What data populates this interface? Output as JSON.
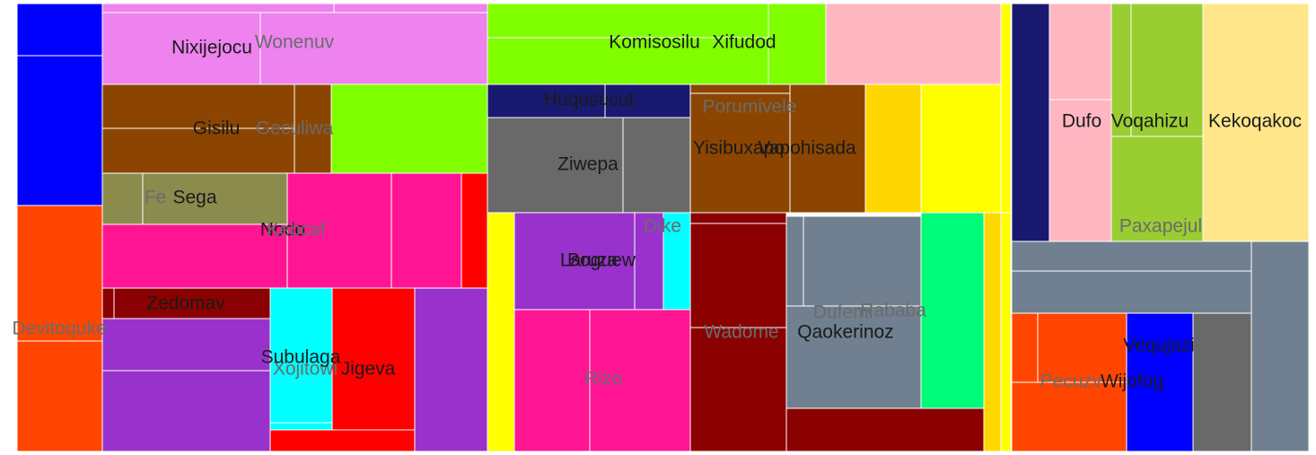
{
  "chart_data": {
    "type": "treemap",
    "colors": {
      "blue": "#0000ff",
      "orangered": "#ff4500",
      "violet": "#ee82ee",
      "saddlebrown": "#8b4500",
      "chartreuse": "#7fff00",
      "olive": "#8b8b4e",
      "deeppink": "#ff1493",
      "red": "#ff0000",
      "darkred": "#8b0000",
      "darkorchid": "#9932cc",
      "cyan": "#00ffff",
      "pink": "#ffb6c1",
      "navy": "#191970",
      "dimgray": "#696969",
      "gold": "#ffd700",
      "yellow": "#ffff00",
      "slategray": "#708090",
      "springgreen": "#00fa7a",
      "yellowgreen": "#9acd32",
      "lightyellow": "#ffe68a"
    },
    "cells": [
      {
        "color": "blue",
        "value": 0.12
      },
      {
        "color": "blue",
        "value": 4.64
      },
      {
        "color": "orangered",
        "value": 3.45
      },
      {
        "color": "orangered",
        "value": 3.71,
        "label": "Devitoquke",
        "label_color": "dim"
      },
      {
        "color": "violet",
        "value": 0.18
      },
      {
        "color": "violet",
        "value": 0.24
      },
      {
        "color": "violet",
        "value": 5.0,
        "label": "Nixijejocu",
        "label_color": "dark"
      },
      {
        "color": "violet",
        "value": 6.6,
        "label": "Wonenuv",
        "label_color": "dim"
      },
      {
        "color": "saddlebrown",
        "value": 2.64
      },
      {
        "color": "saddlebrown",
        "value": 2.6,
        "label": "Gisilu",
        "label_color": "dark"
      },
      {
        "color": "saddlebrown",
        "value": 1.0,
        "label": "Geculiwa",
        "label_color": "dim"
      },
      {
        "color": "chartreuse",
        "value": 3.5
      },
      {
        "color": "olive",
        "value": 0.73,
        "label": "Fe",
        "label_color": "dim"
      },
      {
        "color": "olive",
        "value": 2.5,
        "label": "Sega",
        "label_color": "dark"
      },
      {
        "color": "deeppink",
        "value": 3.15,
        "label": "Nodo",
        "label_color": "dark"
      },
      {
        "color": "deeppink",
        "value": 3.0,
        "label": "Kebcaf",
        "label_color": "dim"
      },
      {
        "color": "deeppink",
        "value": 1.94
      },
      {
        "color": "red",
        "value": 0.74
      },
      {
        "color": "darkred",
        "value": 0.23
      },
      {
        "color": "darkred",
        "value": 2.0,
        "label": "Zedomav",
        "label_color": "dark"
      },
      {
        "color": "darkorchid",
        "value": 2.57
      },
      {
        "color": "darkorchid",
        "value": 4.33
      },
      {
        "color": "cyan",
        "value": 2.8,
        "label": "Xojitowi",
        "label_color": "dim"
      },
      {
        "color": "cyan",
        "value": 0.21
      },
      {
        "color": "red",
        "value": 2.65,
        "label": "Jigeva",
        "label_color": "dark"
      },
      {
        "color": "red",
        "value": 1.0
      },
      {
        "color": "darkorchid",
        "value": 3.95
      },
      {
        "color": "chartreuse",
        "value": 1.48
      },
      {
        "color": "chartreuse",
        "value": 3.0,
        "label": "Komisosilu",
        "label_color": "dark"
      },
      {
        "color": "chartreuse",
        "value": 2.77,
        "label": "Xifudod",
        "label_color": "dark"
      },
      {
        "color": "pink",
        "value": 4.85
      },
      {
        "color": "navy",
        "value": 1.47,
        "label": "Huqosucut",
        "label_color": "dark"
      },
      {
        "color": "navy",
        "value": 1.2
      },
      {
        "color": "dimgray",
        "value": 4.85,
        "label": "Ziwepa",
        "label_color": "dark"
      },
      {
        "color": "dimgray",
        "value": 2.72
      },
      {
        "color": "saddlebrown",
        "value": 0.0,
        "label": "Porumivele",
        "label_color": "dim"
      },
      {
        "color": "saddlebrown",
        "value": 4.2,
        "label": "Yisibuxapo",
        "label_color": "dark"
      },
      {
        "color": "saddlebrown",
        "value": 3.8,
        "label": "Vapohisada",
        "label_color": "dark"
      },
      {
        "color": "gold",
        "value": 2.0
      },
      {
        "color": "yellow",
        "value": 3.2
      },
      {
        "color": "yellow",
        "value": 0.85
      },
      {
        "color": "yellow",
        "value": 1.3
      },
      {
        "color": "darkorchid",
        "value": 3.65,
        "label": "Laruza",
        "label_color": "dark"
      },
      {
        "color": "darkorchid",
        "value": 0.7,
        "label": "Boguew",
        "label_color": "dark"
      },
      {
        "color": "cyan",
        "value": 0.97,
        "label": "Dike",
        "label_color": "dim"
      },
      {
        "color": "deeppink",
        "value": 2.6
      },
      {
        "color": "deeppink",
        "value": 3.9,
        "label": "Rizo",
        "label_color": "dim"
      },
      {
        "color": "darkred",
        "value": 0.3
      },
      {
        "color": "darkred",
        "value": 3.0
      },
      {
        "color": "darkred",
        "value": 3.6,
        "label": "Wadome",
        "label_color": "dim"
      },
      {
        "color": "slategray",
        "value": 0.7
      },
      {
        "color": "slategray",
        "value": 3.4,
        "label": "Dufemi",
        "label_color": "dim"
      },
      {
        "color": "slategray",
        "value": 3.0,
        "label": "Qaokerinoz",
        "label_color": "dark"
      },
      {
        "color": "springgreen",
        "value": 2.4,
        "label": "Rababa",
        "label_color": "dim"
      },
      {
        "color": "darkred",
        "value": 2.6
      },
      {
        "color": "gold",
        "value": 0.4
      },
      {
        "color": "yellow",
        "value": 0.2
      },
      {
        "color": "navy",
        "value": 1.4
      },
      {
        "color": "pink",
        "value": 1.4
      },
      {
        "color": "pink",
        "value": 2.0,
        "label": "Dufo",
        "label_color": "dark"
      },
      {
        "color": "yellowgreen",
        "value": 0.4
      },
      {
        "color": "yellowgreen",
        "value": 2.0,
        "label": "Voqahizu",
        "label_color": "dark"
      },
      {
        "color": "yellowgreen",
        "value": 2.2,
        "label": "Paxapejul",
        "label_color": "dim"
      },
      {
        "color": "lightyellow",
        "value": 3.2,
        "label": "Kekoqakoc",
        "label_color": "dark"
      },
      {
        "color": "slategray",
        "value": 1.1
      },
      {
        "color": "slategray",
        "value": 1.0
      },
      {
        "color": "slategray",
        "value": 2.4
      },
      {
        "color": "orangered",
        "value": 0.6
      },
      {
        "color": "orangered",
        "value": 1.5
      },
      {
        "color": "orangered",
        "value": 2.6,
        "label": "Pecuzv",
        "label_color": "dim"
      },
      {
        "color": "blue",
        "value": 2.2,
        "label": "Wijofog",
        "label_color": "dark"
      },
      {
        "color": "dimgray",
        "value": 1.8,
        "label": "Vequjazi",
        "label_color": "dark"
      }
    ]
  }
}
